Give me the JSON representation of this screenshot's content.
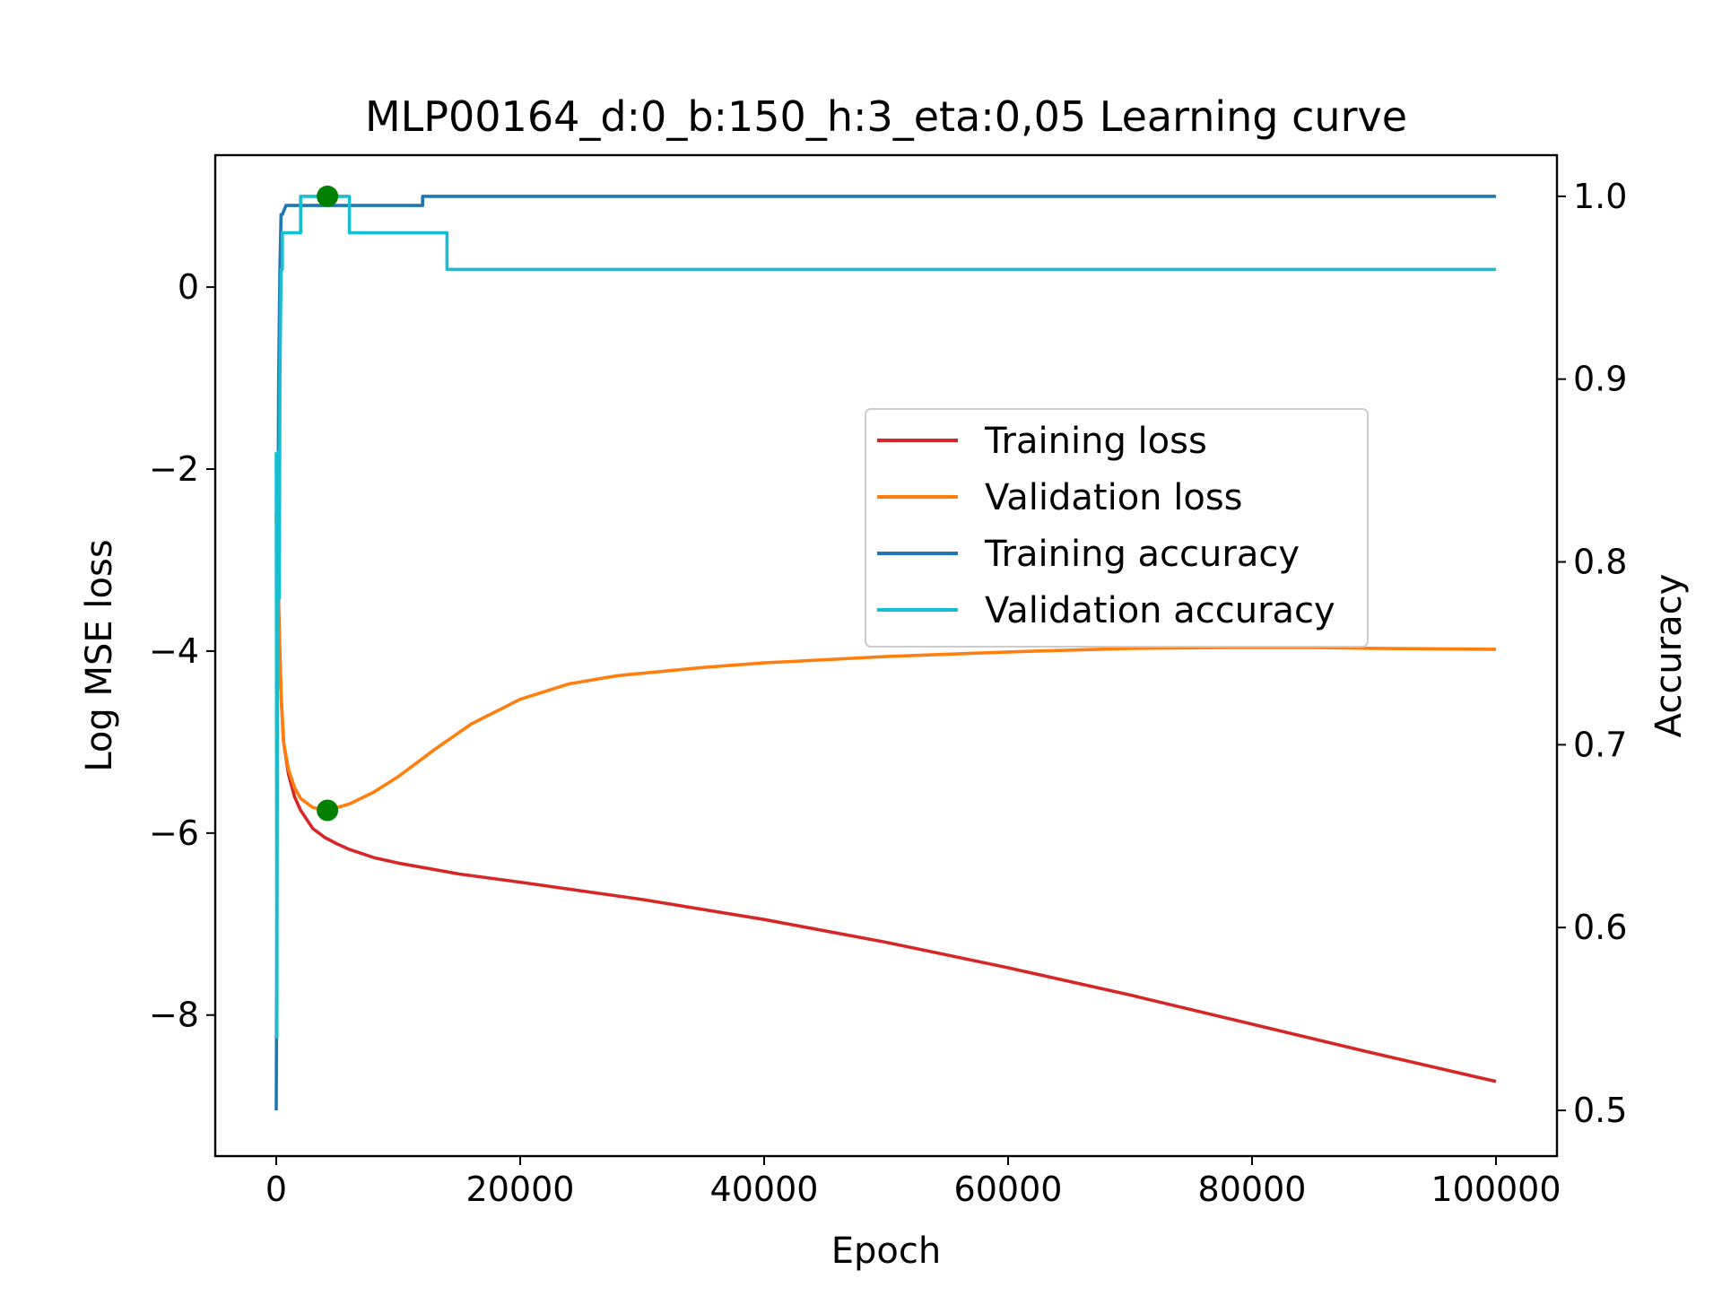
{
  "chart_data": {
    "type": "line",
    "title": "MLP00164_d:0_b:150_h:3_eta:0,05 Learning curve",
    "xlabel": "Epoch",
    "ylabel": "Log MSE loss",
    "y2label": "Accuracy",
    "xlim": [
      -5000,
      105000
    ],
    "ylim": [
      -9.55,
      1.45
    ],
    "y2lim": [
      0.475,
      1.0225
    ],
    "xticks": [
      0,
      20000,
      40000,
      60000,
      80000,
      100000
    ],
    "xtick_labels": [
      "0",
      "20000",
      "40000",
      "60000",
      "80000",
      "100000"
    ],
    "yticks": [
      0,
      -2,
      -4,
      -6,
      -8
    ],
    "ytick_labels": [
      "0",
      "−2",
      "−4",
      "−6",
      "−8"
    ],
    "y2ticks": [
      1.0,
      0.9,
      0.8,
      0.7,
      0.6,
      0.5
    ],
    "y2tick_labels": [
      "1.0",
      "0.9",
      "0.8",
      "0.7",
      "0.6",
      "0.5"
    ],
    "legend_position": "center-right",
    "series": [
      {
        "name": "Training loss",
        "axis": "left",
        "color": "#d62728",
        "x": [
          0,
          200,
          400,
          600,
          1000,
          1500,
          2000,
          3000,
          4000,
          5000,
          6000,
          8000,
          10000,
          15000,
          20000,
          30000,
          40000,
          50000,
          60000,
          70000,
          80000,
          90000,
          100000
        ],
        "y": [
          -2.5,
          -3.5,
          -4.5,
          -5.0,
          -5.35,
          -5.6,
          -5.75,
          -5.95,
          -6.05,
          -6.12,
          -6.18,
          -6.27,
          -6.33,
          -6.45,
          -6.54,
          -6.73,
          -6.95,
          -7.2,
          -7.48,
          -7.78,
          -8.1,
          -8.42,
          -8.73
        ]
      },
      {
        "name": "Validation loss",
        "axis": "left",
        "color": "#ff7f0e",
        "x": [
          0,
          200,
          400,
          600,
          1000,
          1500,
          2000,
          3000,
          4200,
          6000,
          8000,
          10000,
          13000,
          16000,
          20000,
          24000,
          28000,
          35000,
          40000,
          50000,
          60000,
          70000,
          78000,
          85000,
          90000,
          100000
        ],
        "y": [
          -2.5,
          -3.6,
          -4.5,
          -5.0,
          -5.3,
          -5.5,
          -5.62,
          -5.72,
          -5.75,
          -5.68,
          -5.55,
          -5.38,
          -5.08,
          -4.8,
          -4.53,
          -4.36,
          -4.27,
          -4.18,
          -4.13,
          -4.06,
          -4.01,
          -3.97,
          -3.96,
          -3.96,
          -3.97,
          -3.98
        ]
      },
      {
        "name": "Training accuracy",
        "axis": "right",
        "color": "#1f77b4",
        "x": [
          0,
          50,
          100,
          150,
          200,
          300,
          400,
          500,
          800,
          12000,
          12000,
          100000
        ],
        "y": [
          0.5,
          0.6,
          0.78,
          0.82,
          0.9,
          0.96,
          0.99,
          0.99,
          0.995,
          0.995,
          1.0,
          1.0
        ]
      },
      {
        "name": "Validation accuracy",
        "axis": "right",
        "color": "#17becf",
        "x": [
          0,
          50,
          100,
          150,
          250,
          300,
          400,
          500,
          500,
          2000,
          2000,
          6000,
          6000,
          14000,
          14000,
          100000
        ],
        "y": [
          0.86,
          0.54,
          0.8,
          0.86,
          0.78,
          0.9,
          0.96,
          0.96,
          0.98,
          0.98,
          1.0,
          1.0,
          0.98,
          0.98,
          0.96,
          0.96
        ]
      }
    ],
    "markers": [
      {
        "axis": "left",
        "x": 4200,
        "y": -5.75,
        "color": "#008000"
      },
      {
        "axis": "right",
        "x": 4200,
        "y": 1.0,
        "color": "#008000"
      }
    ]
  }
}
